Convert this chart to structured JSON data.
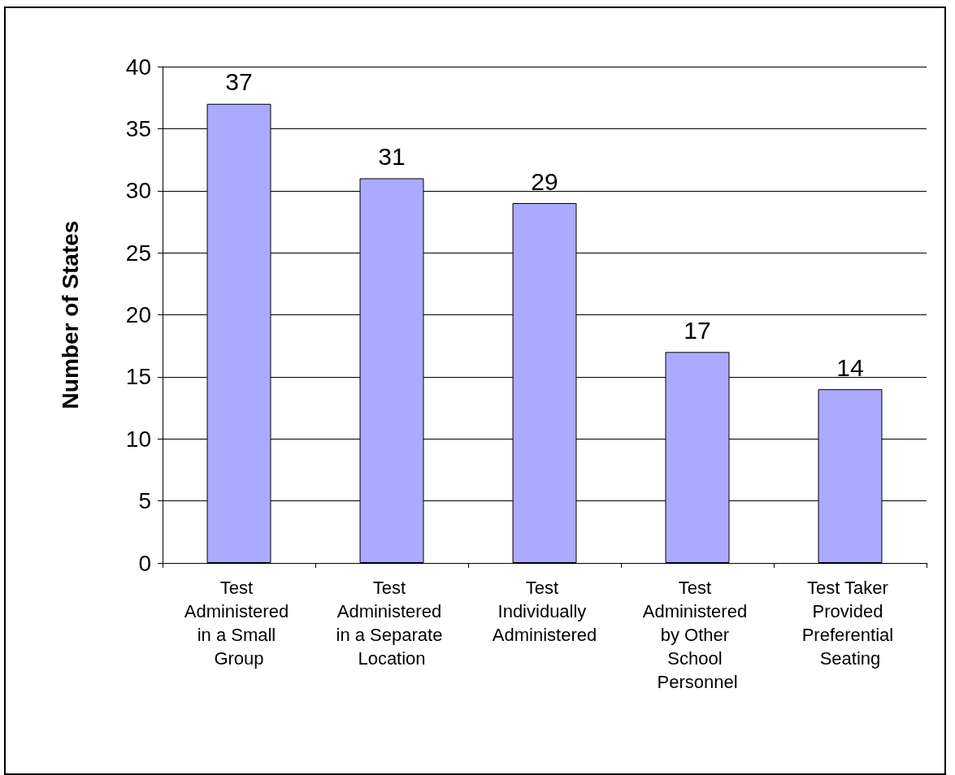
{
  "chart_data": {
    "type": "bar",
    "ylabel": "Number of States",
    "categories": [
      "Test Administered in a Small Group",
      "Test Administered in a Separate Location",
      "Test Individually Administered",
      "Test Administered by Other School Personnel",
      "Test Taker Provided Preferential Seating"
    ],
    "values": [
      37,
      31,
      29,
      17,
      14
    ],
    "color": "#aaaaff",
    "ylim": [
      0,
      40
    ],
    "yticks": [
      0,
      5,
      10,
      15,
      20,
      25,
      30,
      35,
      40
    ],
    "grid": "y",
    "data_labels": true
  }
}
